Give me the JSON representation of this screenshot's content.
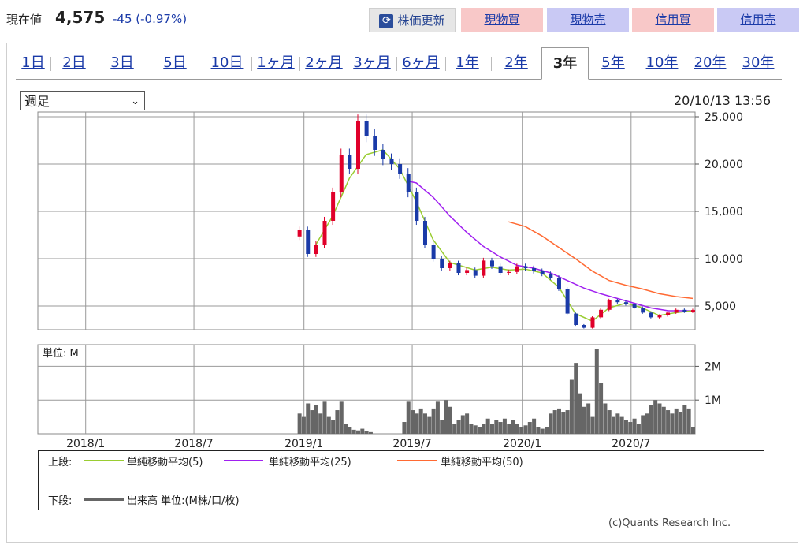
{
  "header": {
    "price_label": "現在値",
    "price": "4,575",
    "change": "-45",
    "change_pct": "(-0.97%)",
    "refresh_label": "株価更新",
    "buttons": [
      "現物買",
      "現物売",
      "信用買",
      "信用売"
    ]
  },
  "tabs": [
    "1日",
    "2日",
    "3日",
    "5日",
    "10日",
    "1ヶ月",
    "2ヶ月",
    "3ヶ月",
    "6ヶ月",
    "1年",
    "2年",
    "3年",
    "5年",
    "10年",
    "20年",
    "30年"
  ],
  "active_tab": "3年",
  "interval_select": "週足",
  "timestamp": "20/10/13 13:56",
  "legend": {
    "upper_label": "上段:",
    "ma5": "単純移動平均(5)",
    "ma25": "単純移動平均(25)",
    "ma50": "単純移動平均(50)",
    "lower_label": "下段:",
    "volume": "出来高 単位:(M株/口/枚)"
  },
  "copyright": "(c)Quants Research Inc.",
  "colors": {
    "up": "#e0002a",
    "down": "#1a3aa8",
    "ma5": "#9acd32",
    "ma25": "#a020f0",
    "ma50": "#ff6a33",
    "volume": "#666666"
  },
  "chart_data": [
    {
      "type": "line",
      "x_ticks": [
        "2018/1",
        "2018/7",
        "2019/1",
        "2019/7",
        "2020/1",
        "2020/7"
      ],
      "y_ticks": [
        "25,000",
        "20,000",
        "15,000",
        "10,000",
        "5,000"
      ],
      "ylim": [
        2500,
        25500
      ],
      "price": [
        [
          "2018/12/24",
          13000
        ],
        [
          "2019/1/7",
          10500
        ],
        [
          "2019/1/21",
          11500
        ],
        [
          "2019/2/4",
          14000
        ],
        [
          "2019/2/18",
          17000
        ],
        [
          "2019/3/4",
          21000
        ],
        [
          "2019/3/18",
          19500
        ],
        [
          "2019/4/1",
          24500
        ],
        [
          "2019/4/15",
          23000
        ],
        [
          "2019/4/29",
          21500
        ],
        [
          "2019/5/13",
          20500
        ],
        [
          "2019/5/27",
          20000
        ],
        [
          "2019/6/10",
          19000
        ],
        [
          "2019/6/24",
          17000
        ],
        [
          "2019/7/8",
          14000
        ],
        [
          "2019/7/22",
          11500
        ],
        [
          "2019/8/5",
          10000
        ],
        [
          "2019/8/19",
          9000
        ],
        [
          "2019/9/2",
          9500
        ],
        [
          "2019/9/16",
          8500
        ],
        [
          "2019/9/30",
          8800
        ],
        [
          "2019/10/14",
          8200
        ],
        [
          "2019/10/28",
          9800
        ],
        [
          "2019/11/11",
          9200
        ],
        [
          "2019/11/25",
          8500
        ],
        [
          "2019/12/9",
          8600
        ],
        [
          "2019/12/23",
          9200
        ],
        [
          "2020/1/6",
          9000
        ],
        [
          "2020/1/20",
          8700
        ],
        [
          "2020/2/3",
          8400
        ],
        [
          "2020/2/17",
          8000
        ],
        [
          "2020/3/2",
          6800
        ],
        [
          "2020/3/16",
          4200
        ],
        [
          "2020/3/30",
          3000
        ],
        [
          "2020/4/13",
          2700
        ],
        [
          "2020/4/27",
          3800
        ],
        [
          "2020/5/11",
          4600
        ],
        [
          "2020/5/25",
          5600
        ],
        [
          "2020/6/8",
          5400
        ],
        [
          "2020/6/22",
          5200
        ],
        [
          "2020/7/6",
          4800
        ],
        [
          "2020/7/20",
          4300
        ],
        [
          "2020/8/3",
          3800
        ],
        [
          "2020/8/17",
          4000
        ],
        [
          "2020/8/31",
          4300
        ],
        [
          "2020/9/14",
          4600
        ],
        [
          "2020/9/28",
          4400
        ],
        [
          "2020/10/12",
          4575
        ]
      ],
      "ma25": [
        [
          "2019/6/24",
          18200
        ],
        [
          "2019/7/8",
          18000
        ],
        [
          "2019/8/5",
          16500
        ],
        [
          "2019/9/2",
          14500
        ],
        [
          "2019/9/30",
          12800
        ],
        [
          "2019/10/28",
          11300
        ],
        [
          "2019/11/25",
          10200
        ],
        [
          "2019/12/23",
          9300
        ],
        [
          "2020/1/20",
          9000
        ],
        [
          "2020/2/17",
          8500
        ],
        [
          "2020/3/16",
          7700
        ],
        [
          "2020/4/13",
          6900
        ],
        [
          "2020/5/11",
          6300
        ],
        [
          "2020/6/8",
          5800
        ],
        [
          "2020/7/6",
          5300
        ],
        [
          "2020/8/3",
          4800
        ],
        [
          "2020/9/1",
          4500
        ],
        [
          "2020/10/12",
          4500
        ]
      ],
      "ma50": [
        [
          "2019/12/9",
          13900
        ],
        [
          "2020/1/6",
          13400
        ],
        [
          "2020/2/3",
          12400
        ],
        [
          "2020/3/2",
          11200
        ],
        [
          "2020/3/30",
          10000
        ],
        [
          "2020/4/27",
          8700
        ],
        [
          "2020/5/25",
          7700
        ],
        [
          "2020/6/22",
          7200
        ],
        [
          "2020/7/20",
          6800
        ],
        [
          "2020/8/17",
          6300
        ],
        [
          "2020/9/14",
          6000
        ],
        [
          "2020/10/12",
          5800
        ]
      ],
      "ma5": [
        [
          "2019/1/21",
          11500
        ],
        [
          "2019/2/18",
          14500
        ],
        [
          "2019/3/18",
          18500
        ],
        [
          "2019/4/15",
          21000
        ],
        [
          "2019/5/13",
          21500
        ],
        [
          "2019/6/10",
          19500
        ],
        [
          "2019/7/8",
          16000
        ],
        [
          "2019/8/5",
          12000
        ],
        [
          "2019/9/2",
          9600
        ],
        [
          "2019/10/14",
          8800
        ],
        [
          "2019/11/11",
          9100
        ],
        [
          "2019/12/9",
          8800
        ],
        [
          "2020/1/6",
          8900
        ],
        [
          "2020/2/3",
          8500
        ],
        [
          "2020/3/2",
          7000
        ],
        [
          "2020/3/30",
          4200
        ],
        [
          "2020/4/27",
          3400
        ],
        [
          "2020/5/25",
          4800
        ],
        [
          "2020/6/22",
          5300
        ],
        [
          "2020/7/20",
          4800
        ],
        [
          "2020/8/17",
          4000
        ],
        [
          "2020/9/14",
          4300
        ],
        [
          "2020/10/12",
          4500
        ]
      ]
    },
    {
      "type": "bar",
      "unit_label": "単位: M",
      "y_ticks": [
        "2M",
        "1M"
      ],
      "ylim": [
        0,
        2.5
      ],
      "volume": [
        [
          "2018/12/24",
          0.6
        ],
        [
          "2018/12/31",
          0.5
        ],
        [
          "2019/1/7",
          0.9
        ],
        [
          "2019/1/14",
          0.7
        ],
        [
          "2019/1/21",
          0.85
        ],
        [
          "2019/1/28",
          0.6
        ],
        [
          "2019/2/4",
          0.95
        ],
        [
          "2019/2/11",
          0.5
        ],
        [
          "2019/2/18",
          0.4
        ],
        [
          "2019/2/25",
          0.7
        ],
        [
          "2019/3/4",
          0.95
        ],
        [
          "2019/3/11",
          0.3
        ],
        [
          "2019/3/18",
          0.2
        ],
        [
          "2019/3/25",
          0.12
        ],
        [
          "2019/4/1",
          0.1
        ],
        [
          "2019/4/8",
          0.15
        ],
        [
          "2019/4/15",
          0.08
        ],
        [
          "2019/4/22",
          0.05
        ],
        [
          "2019/6/17",
          0.35
        ],
        [
          "2019/6/24",
          0.95
        ],
        [
          "2019/7/1",
          0.7
        ],
        [
          "2019/7/8",
          0.6
        ],
        [
          "2019/7/15",
          0.75
        ],
        [
          "2019/7/22",
          0.6
        ],
        [
          "2019/7/29",
          0.5
        ],
        [
          "2019/8/5",
          0.75
        ],
        [
          "2019/8/12",
          0.95
        ],
        [
          "2019/8/19",
          0.4
        ],
        [
          "2019/8/26",
          1.0
        ],
        [
          "2019/9/2",
          0.8
        ],
        [
          "2019/9/9",
          0.3
        ],
        [
          "2019/9/16",
          0.4
        ],
        [
          "2019/9/23",
          0.55
        ],
        [
          "2019/9/30",
          0.6
        ],
        [
          "2019/10/7",
          0.3
        ],
        [
          "2019/10/14",
          0.25
        ],
        [
          "2019/10/21",
          0.2
        ],
        [
          "2019/10/28",
          0.3
        ],
        [
          "2019/11/4",
          0.45
        ],
        [
          "2019/11/11",
          0.3
        ],
        [
          "2019/11/18",
          0.4
        ],
        [
          "2019/11/25",
          0.35
        ],
        [
          "2019/12/2",
          0.45
        ],
        [
          "2019/12/9",
          0.3
        ],
        [
          "2019/12/16",
          0.4
        ],
        [
          "2019/12/23",
          0.3
        ],
        [
          "2019/12/30",
          0.2
        ],
        [
          "2020/1/6",
          0.25
        ],
        [
          "2020/1/13",
          0.35
        ],
        [
          "2020/1/20",
          0.45
        ],
        [
          "2020/1/27",
          0.2
        ],
        [
          "2020/2/3",
          0.15
        ],
        [
          "2020/2/10",
          0.2
        ],
        [
          "2020/2/17",
          0.6
        ],
        [
          "2020/2/24",
          0.7
        ],
        [
          "2020/3/2",
          0.75
        ],
        [
          "2020/3/9",
          0.65
        ],
        [
          "2020/3/16",
          0.7
        ],
        [
          "2020/3/23",
          1.6
        ],
        [
          "2020/3/30",
          2.1
        ],
        [
          "2020/4/6",
          1.2
        ],
        [
          "2020/4/13",
          0.8
        ],
        [
          "2020/4/20",
          0.9
        ],
        [
          "2020/4/27",
          0.5
        ],
        [
          "2020/5/4",
          2.5
        ],
        [
          "2020/5/11",
          1.5
        ],
        [
          "2020/5/18",
          0.9
        ],
        [
          "2020/5/25",
          0.7
        ],
        [
          "2020/6/1",
          0.5
        ],
        [
          "2020/6/8",
          0.6
        ],
        [
          "2020/6/15",
          0.5
        ],
        [
          "2020/6/22",
          0.4
        ],
        [
          "2020/6/29",
          0.35
        ],
        [
          "2020/7/6",
          0.45
        ],
        [
          "2020/7/13",
          0.3
        ],
        [
          "2020/7/20",
          0.55
        ],
        [
          "2020/7/27",
          0.6
        ],
        [
          "2020/8/3",
          0.85
        ],
        [
          "2020/8/10",
          1.0
        ],
        [
          "2020/8/17",
          0.9
        ],
        [
          "2020/8/24",
          0.8
        ],
        [
          "2020/8/31",
          0.7
        ],
        [
          "2020/9/7",
          0.6
        ],
        [
          "2020/9/14",
          0.75
        ],
        [
          "2020/9/21",
          0.65
        ],
        [
          "2020/9/28",
          0.85
        ],
        [
          "2020/10/5",
          0.75
        ],
        [
          "2020/10/12",
          0.2
        ]
      ]
    }
  ]
}
